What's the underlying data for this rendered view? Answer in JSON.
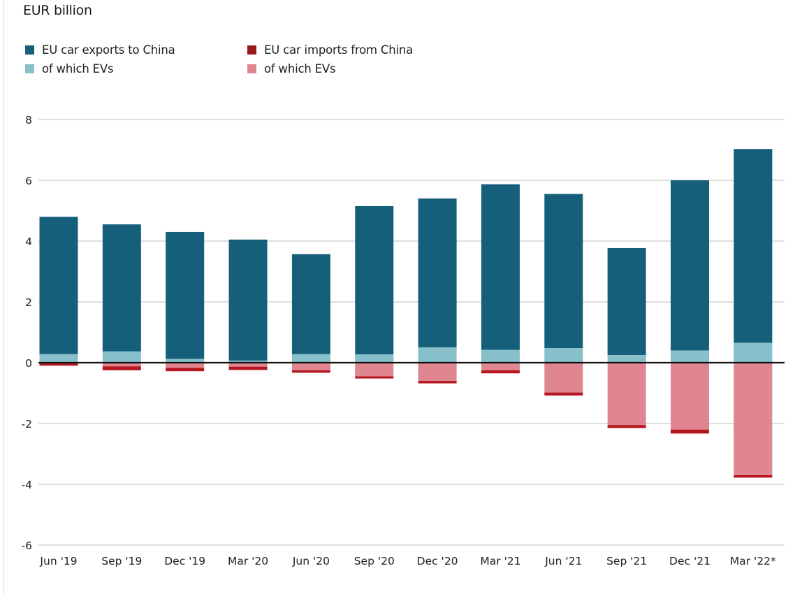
{
  "chart_data": {
    "type": "bar",
    "stacked": true,
    "title": "",
    "ylabel": "EUR billion",
    "xlabel": "",
    "ylim": [
      -6,
      8
    ],
    "yticks": [
      8,
      6,
      4,
      2,
      0,
      -2,
      -4,
      -6
    ],
    "grid": true,
    "legend_position": "top-left",
    "categories": [
      "Jun '19",
      "Sep '19",
      "Dec '19",
      "Mar '20",
      "Jun '20",
      "Sep '20",
      "Dec '20",
      "Mar '21",
      "Jun '21",
      "Sep '21",
      "Dec '21",
      "Mar '22*"
    ],
    "series": [
      {
        "name": "EU car exports to China",
        "color": "#155f7a",
        "values": [
          4.8,
          4.55,
          4.3,
          4.05,
          3.57,
          5.15,
          5.4,
          5.87,
          5.55,
          3.77,
          6.0,
          7.03
        ]
      },
      {
        "name": "of which EVs",
        "parent": "EU car exports to China",
        "color": "#87bfca",
        "values": [
          0.28,
          0.37,
          0.12,
          0.07,
          0.28,
          0.27,
          0.5,
          0.42,
          0.48,
          0.25,
          0.4,
          0.65
        ]
      },
      {
        "name": "EU car imports from China",
        "color": "#b5161f",
        "values": [
          -0.1,
          -0.25,
          -0.28,
          -0.24,
          -0.33,
          -0.52,
          -0.68,
          -0.35,
          -1.08,
          -2.15,
          -2.33,
          -3.78
        ]
      },
      {
        "name": "of which EVs",
        "parent": "EU car imports from China",
        "color": "#df8690",
        "values": [
          -0.02,
          -0.12,
          -0.17,
          -0.13,
          -0.25,
          -0.45,
          -0.6,
          -0.25,
          -0.98,
          -2.05,
          -2.2,
          -3.7
        ]
      }
    ]
  },
  "legend": {
    "items": [
      {
        "label": "EU car exports to China",
        "color": "#155f7a"
      },
      {
        "label": "of which EVs",
        "color": "#87bfca"
      },
      {
        "label": "EU car imports from China",
        "color": "#9a1a1e"
      },
      {
        "label": "of which EVs",
        "color": "#df8690"
      }
    ]
  },
  "colors": {
    "grid": "#d3d3d3",
    "zero_line": "#111111"
  }
}
